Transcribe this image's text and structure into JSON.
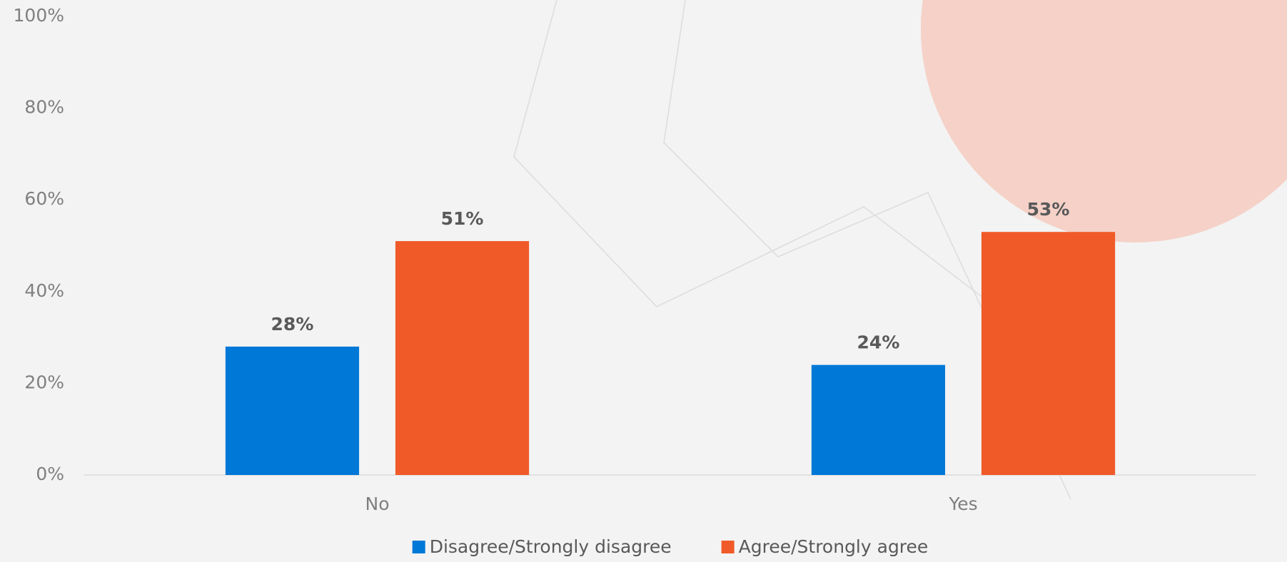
{
  "chart_data": {
    "type": "bar",
    "categories": [
      "No",
      "Yes"
    ],
    "series": [
      {
        "name": "Disagree/Strongly disagree",
        "color": "#0078d7",
        "values": [
          28,
          24
        ],
        "value_labels": [
          "28%",
          "24%"
        ]
      },
      {
        "name": "Agree/Strongly agree",
        "color": "#f05a28",
        "values": [
          51,
          53
        ],
        "value_labels": [
          "51%",
          "53%"
        ]
      }
    ],
    "ylim": [
      0,
      100
    ],
    "yticks": [
      {
        "value": 0,
        "label": "0%"
      },
      {
        "value": 20,
        "label": "20%"
      },
      {
        "value": 40,
        "label": "40%"
      },
      {
        "value": 60,
        "label": "60%"
      },
      {
        "value": 80,
        "label": "80%"
      },
      {
        "value": 100,
        "label": "100%"
      }
    ],
    "grid": false,
    "legend": "bottom"
  }
}
